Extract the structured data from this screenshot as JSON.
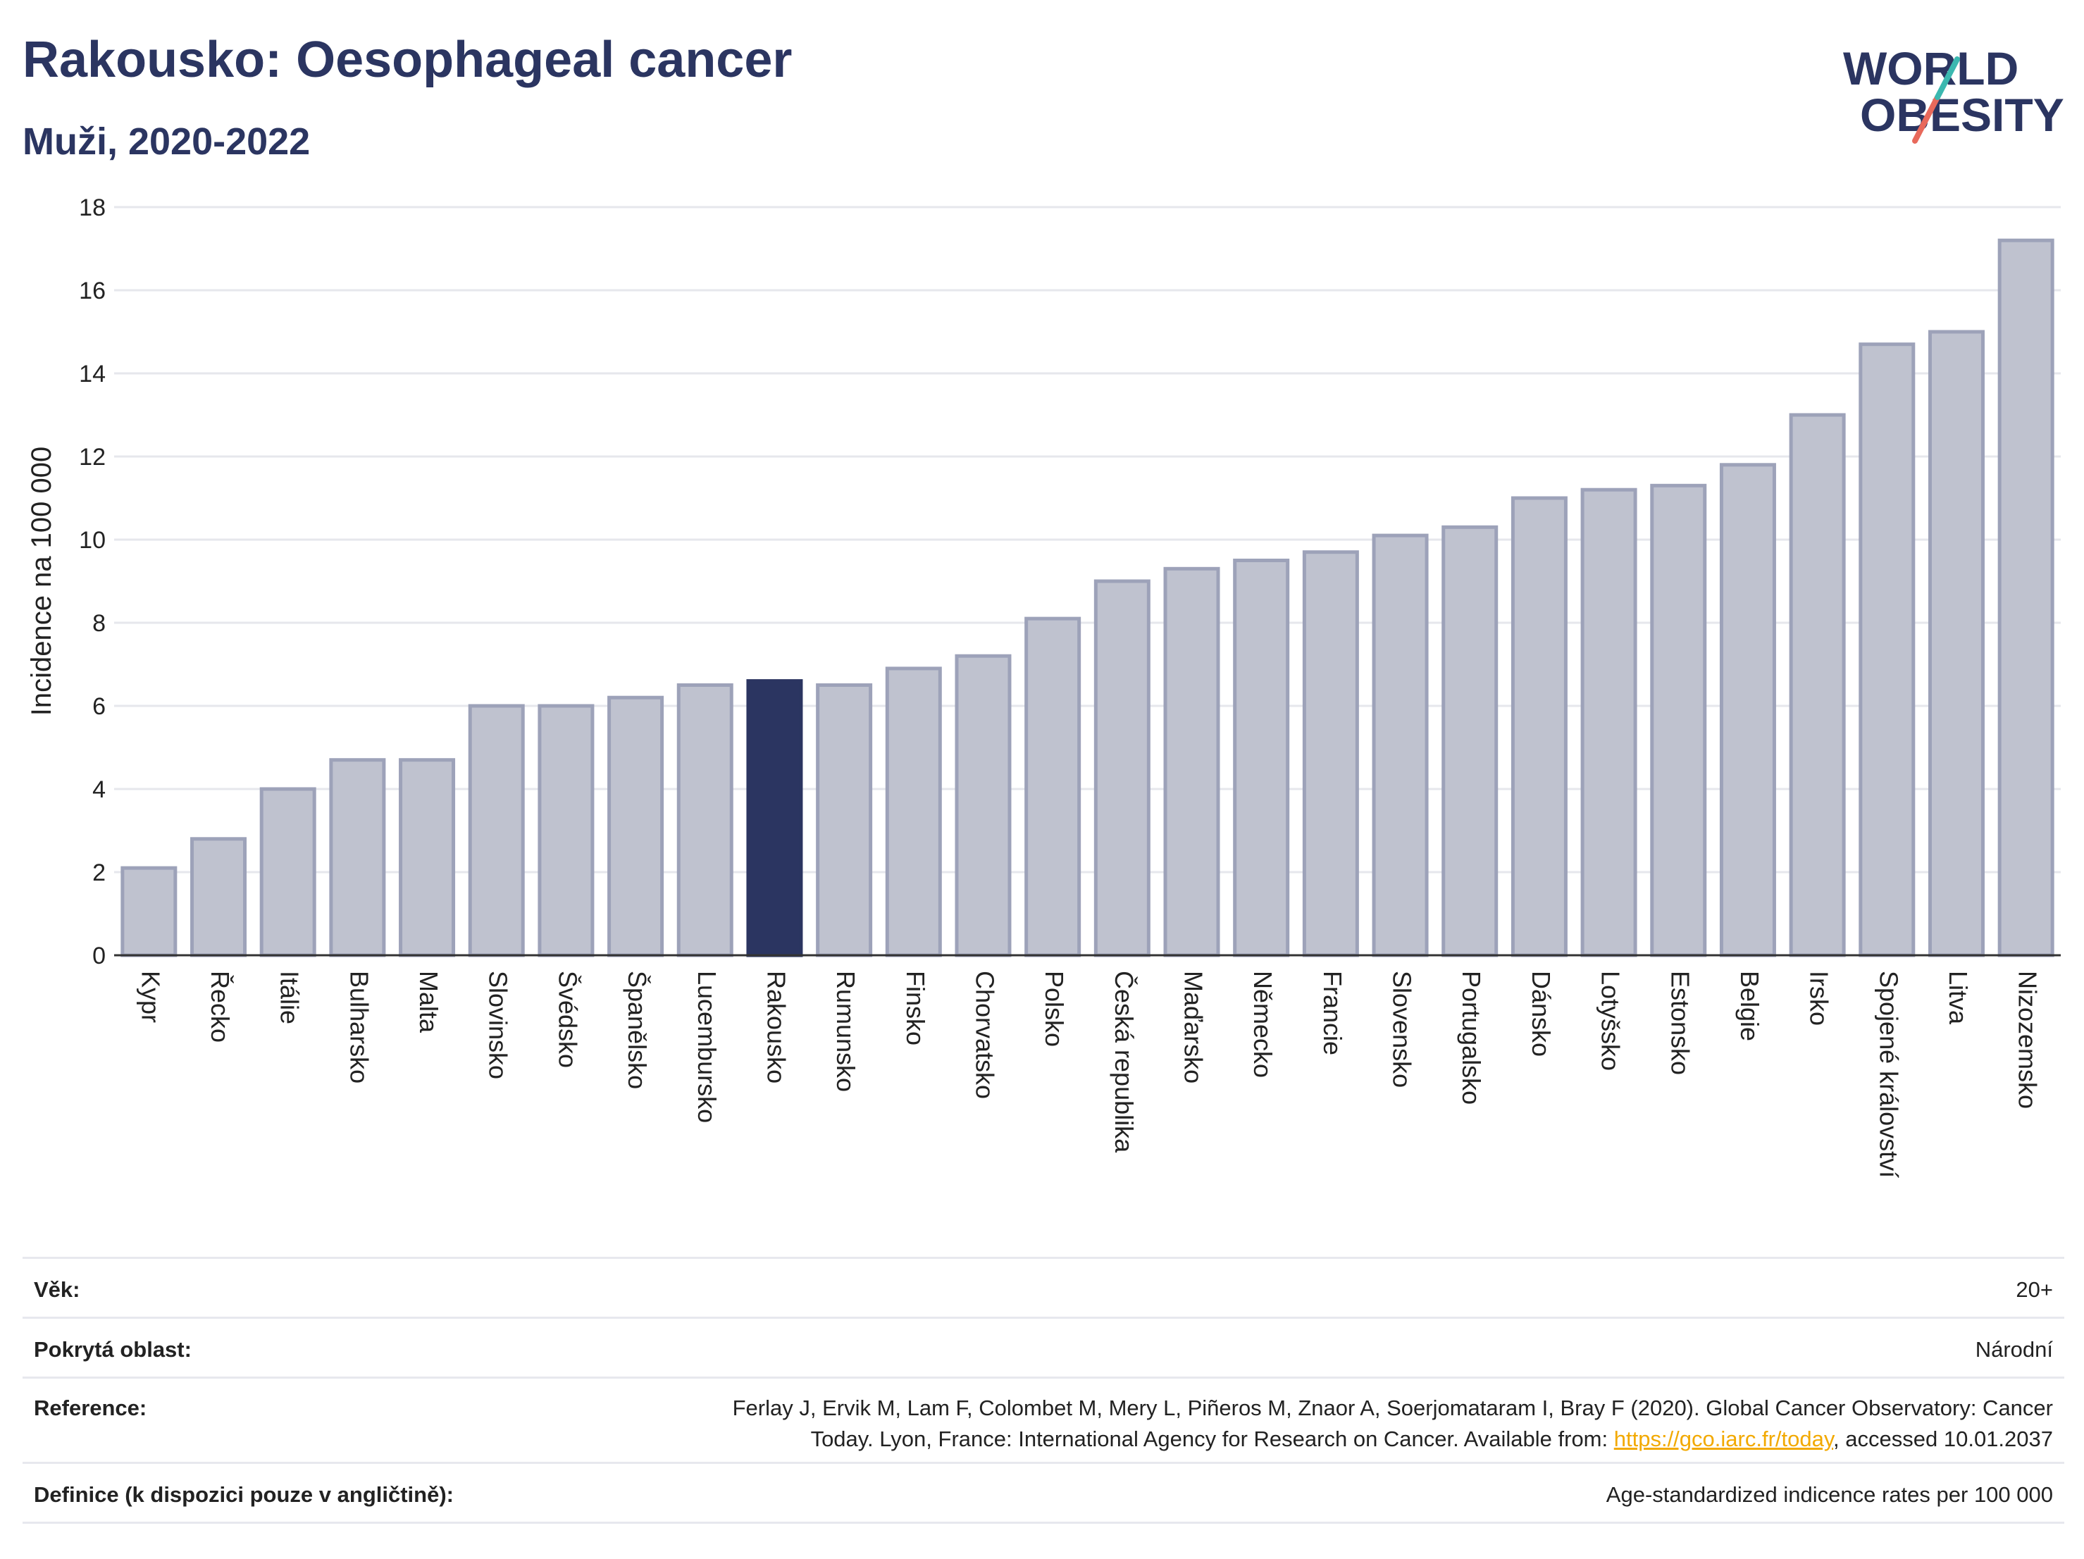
{
  "header": {
    "title": "Rakousko: Oesophageal cancer",
    "subtitle": "Muži, 2020-2022",
    "logo_line1": "WORLD",
    "logo_line2": "OBESITY"
  },
  "chart_data": {
    "type": "bar",
    "title": "Rakousko: Oesophageal cancer",
    "subtitle": "Muži, 2020-2022",
    "ylabel": "Incidence na 100 000",
    "xlabel": "",
    "ylim": [
      0,
      18
    ],
    "yticks": [
      0,
      2,
      4,
      6,
      8,
      10,
      12,
      14,
      16,
      18
    ],
    "grid": true,
    "highlight": "Rakousko",
    "categories": [
      "Kypr",
      "Řecko",
      "Itálie",
      "Bulharsko",
      "Malta",
      "Slovinsko",
      "Švédsko",
      "Španělsko",
      "Lucembursko",
      "Rakousko",
      "Rumunsko",
      "Finsko",
      "Chorvatsko",
      "Polsko",
      "Česká republika",
      "Maďarsko",
      "Německo",
      "Francie",
      "Slovensko",
      "Portugalsko",
      "Dánsko",
      "Lotyšsko",
      "Estonsko",
      "Belgie",
      "Irsko",
      "Spojené království",
      "Litva",
      "Nizozemsko"
    ],
    "values": [
      2.1,
      2.8,
      4.0,
      4.7,
      4.7,
      6.0,
      6.0,
      6.2,
      6.5,
      6.6,
      6.5,
      6.9,
      7.2,
      8.1,
      9.0,
      9.3,
      9.5,
      9.7,
      10.1,
      10.3,
      11.0,
      11.2,
      11.3,
      11.8,
      13.0,
      14.7,
      15.0,
      17.2
    ],
    "colors": {
      "bar": "#bfc2cf",
      "bar_border": "#9da2b9",
      "highlight": "#2b3561",
      "grid": "#e6e7ec",
      "axis": "#333333"
    }
  },
  "info": {
    "age_label": "Věk:",
    "age_value": "20+",
    "area_label": "Pokrytá oblast:",
    "area_value": "Národní",
    "ref_label": "Reference:",
    "ref_text_1": "Ferlay J, Ervik M, Lam F, Colombet M, Mery L, Piñeros M, Znaor A, Soerjomataram I, Bray F (2020). Global Cancer Observatory: Cancer",
    "ref_text_2": "Today. Lyon, France: International Agency for Research on Cancer. Available from: ",
    "ref_link": "https://gco.iarc.fr/today",
    "ref_text_3": ", accessed 10.01.2037",
    "def_label": "Definice (k dispozici pouze v angličtině):",
    "def_value": "Age-standardized indicence rates per 100 000"
  }
}
